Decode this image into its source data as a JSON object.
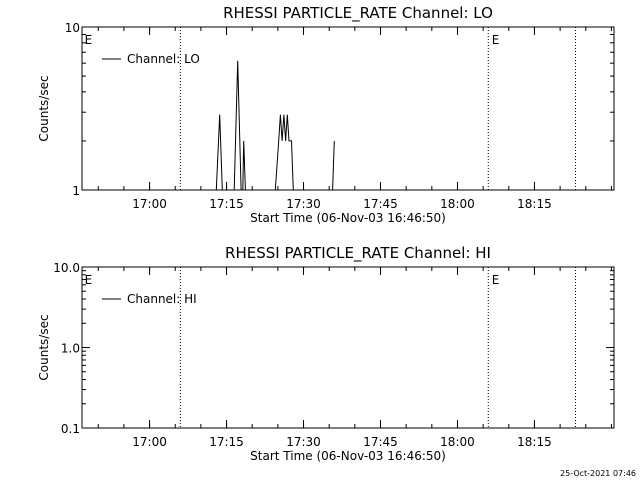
{
  "timestamp": "25-Oct-2021 07:46",
  "chart_data": [
    {
      "type": "line",
      "title": "RHESSI PARTICLE_RATE Channel: LO",
      "xlabel": "Start Time (06-Nov-03 16:46:50)",
      "ylabel": "Counts/sec",
      "yscale": "log",
      "xlim": [
        "16:46:50",
        "18:30:30"
      ],
      "ylim": [
        1,
        10
      ],
      "x_ticks": [
        "17:00",
        "17:15",
        "17:30",
        "17:45",
        "18:00",
        "18:15"
      ],
      "y_ticks": [
        "1",
        "10"
      ],
      "legend": {
        "label": "Channel: LO",
        "position": "top-left"
      },
      "event_lines": [
        "17:06:00",
        "18:06:00",
        "18:23:00"
      ],
      "event_markers": [
        {
          "time": "16:47:20",
          "label": "E"
        },
        {
          "time": "18:06:40",
          "label": "E"
        }
      ],
      "series": [
        {
          "name": "Channel: LO",
          "points": [
            [
              "17:13:00",
              1
            ],
            [
              "17:13:40",
              2.9
            ],
            [
              "17:14:10",
              1
            ],
            [
              "17:16:30",
              1
            ],
            [
              "17:17:10",
              6.2
            ],
            [
              "17:17:50",
              1
            ],
            [
              "17:18:10",
              1
            ],
            [
              "17:18:20",
              2.0
            ],
            [
              "17:18:40",
              1
            ],
            [
              "17:24:30",
              1
            ],
            [
              "17:25:10",
              2.0
            ],
            [
              "17:25:30",
              2.9
            ],
            [
              "17:25:50",
              2.0
            ],
            [
              "17:26:10",
              2.9
            ],
            [
              "17:26:30",
              2.0
            ],
            [
              "17:26:50",
              2.9
            ],
            [
              "17:27:10",
              2.0
            ],
            [
              "17:27:40",
              2.0
            ],
            [
              "17:28:00",
              1
            ],
            [
              "17:35:40",
              1
            ],
            [
              "17:36:00",
              2.0
            ]
          ]
        }
      ]
    },
    {
      "type": "line",
      "title": "RHESSI PARTICLE_RATE Channel: HI",
      "xlabel": "Start Time (06-Nov-03 16:46:50)",
      "ylabel": "Counts/sec",
      "yscale": "log",
      "xlim": [
        "16:46:50",
        "18:30:30"
      ],
      "ylim": [
        0.1,
        10
      ],
      "x_ticks": [
        "17:00",
        "17:15",
        "17:30",
        "17:45",
        "18:00",
        "18:15"
      ],
      "y_ticks": [
        "0.1",
        "1.0",
        "10.0"
      ],
      "legend": {
        "label": "Channel: HI",
        "position": "top-left"
      },
      "event_lines": [
        "17:06:00",
        "18:06:00",
        "18:23:00"
      ],
      "event_markers": [
        {
          "time": "16:47:20",
          "label": "E"
        },
        {
          "time": "18:06:40",
          "label": "E"
        }
      ],
      "series": [
        {
          "name": "Channel: HI",
          "points": []
        }
      ]
    }
  ]
}
